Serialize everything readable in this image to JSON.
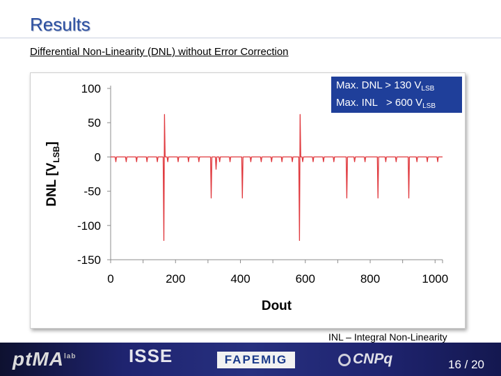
{
  "slide": {
    "title": "Results",
    "subtitle": "Differential Non-Linearity (DNL) without Error Correction",
    "footnote": "INL – Integral Non-Linearity",
    "page": "16 / 20"
  },
  "annotation": {
    "line1_prefix": "Max. DNL > 130 V",
    "line1_sub": "LSB",
    "line2_prefix": "Max. INL   > 600 V",
    "line2_sub": "LSB"
  },
  "footer": {
    "logo_ptma": "ptMA",
    "logo_ptma_sup": "lab",
    "logo_isse": "ISSE",
    "logo_fapemig": "FAPEMIG",
    "logo_cnpq": "CNPq"
  },
  "colors": {
    "title": "#2b4fa0",
    "series": "#e0393e",
    "annotation_bg": "#1f3f9a",
    "footer": "#1f2470"
  },
  "chart_data": {
    "type": "line",
    "xlabel": "Dout",
    "ylabel": "DNL [VLSB]",
    "xlim": [
      0,
      1023
    ],
    "ylim": [
      -150,
      100
    ],
    "xticks": [
      0,
      200,
      400,
      600,
      800,
      1000
    ],
    "yticks": [
      100,
      50,
      0,
      -50,
      -100,
      -150
    ],
    "grid": false,
    "baseline": 0,
    "small_dip_period": 32,
    "small_dip_value": -7,
    "spikes": [
      {
        "x": 164,
        "values": [
          -122,
          62
        ]
      },
      {
        "x": 310,
        "values": [
          -60
        ]
      },
      {
        "x": 325,
        "values": [
          -18
        ]
      },
      {
        "x": 406,
        "values": [
          -60
        ]
      },
      {
        "x": 582,
        "values": [
          -122,
          62
        ]
      },
      {
        "x": 728,
        "values": [
          -60
        ]
      },
      {
        "x": 824,
        "values": [
          -60
        ]
      },
      {
        "x": 919,
        "values": [
          -60
        ]
      }
    ],
    "series": [
      {
        "values_description": "DNL per output code",
        "color": "#e0393e"
      }
    ]
  }
}
